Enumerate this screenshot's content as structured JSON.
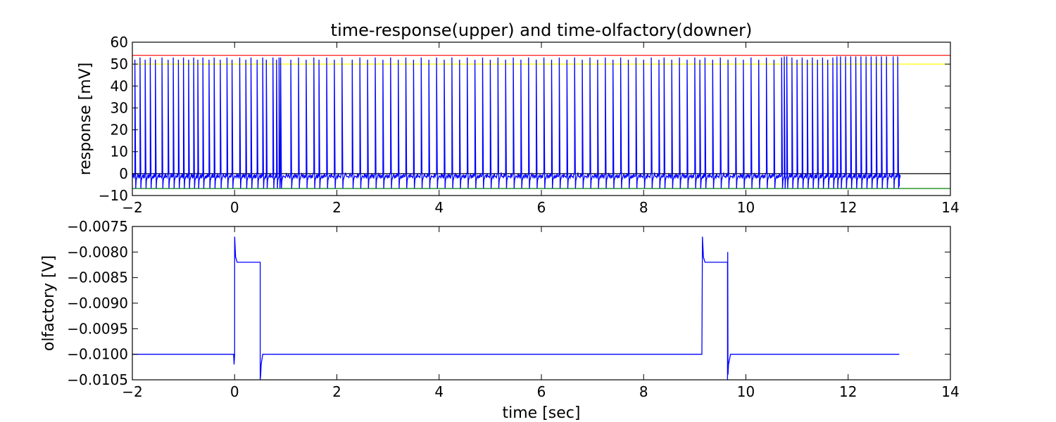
{
  "figure": {
    "title": "time-response(upper) and time-olfactory(downer)",
    "colors": {
      "trace": "#0000ff",
      "frame": "#000000"
    }
  },
  "chart_data": [
    {
      "type": "line",
      "ylabel": "response [mV]",
      "xlabel": "",
      "xlim": [
        -2,
        14
      ],
      "ylim": [
        -10,
        60
      ],
      "xticks": [
        -2,
        0,
        2,
        4,
        6,
        8,
        10,
        12,
        14
      ],
      "yticks": [
        -10,
        0,
        10,
        20,
        30,
        40,
        50,
        60
      ],
      "xtick_labels": [
        "−2",
        "0",
        "2",
        "4",
        "6",
        "8",
        "10",
        "12",
        "14"
      ],
      "ytick_labels": [
        "−10",
        "0",
        "10",
        "20",
        "30",
        "40",
        "50",
        "60"
      ],
      "reference_lines": [
        {
          "y": 54,
          "color": "#ff0000"
        },
        {
          "y": 50,
          "color": "#ffff00"
        },
        {
          "y": 0,
          "color": "#000000"
        },
        {
          "y": -6.8,
          "color": "#008000"
        }
      ],
      "series": [
        {
          "color": "#0000ff",
          "baseline_mV": -1,
          "trough_mV": -6.8,
          "x_range": [
            -2,
            13
          ],
          "spike_times": [
            -1.95,
            -1.85,
            -1.75,
            -1.65,
            -1.55,
            -1.42,
            -1.3,
            -1.2,
            -1.1,
            -1.0,
            -0.9,
            -0.8,
            -0.72,
            -0.62,
            -0.5,
            -0.4,
            -0.28,
            -0.15,
            -0.05,
            0.1,
            0.22,
            0.32,
            0.44,
            0.55,
            0.62,
            0.75,
            0.82,
            0.87,
            0.9,
            1.1,
            1.25,
            1.4,
            1.55,
            1.65,
            1.8,
            1.95,
            2.1,
            2.3,
            2.45,
            2.6,
            2.75,
            2.9,
            3.05,
            3.2,
            3.35,
            3.5,
            3.65,
            3.8,
            3.95,
            4.1,
            4.25,
            4.4,
            4.55,
            4.7,
            4.85,
            5.0,
            5.15,
            5.3,
            5.45,
            5.6,
            5.75,
            5.9,
            6.05,
            6.2,
            6.35,
            6.5,
            6.65,
            6.8,
            6.95,
            7.1,
            7.25,
            7.4,
            7.55,
            7.7,
            7.85,
            8.0,
            8.15,
            8.3,
            8.4,
            8.55,
            8.7,
            8.85,
            9.0,
            9.1,
            9.2,
            9.35,
            9.5,
            9.65,
            9.8,
            9.95,
            10.1,
            10.25,
            10.4,
            10.55,
            10.7,
            10.75,
            10.8,
            10.9,
            11.0,
            11.1,
            11.2,
            11.3,
            11.4,
            11.5,
            11.6,
            11.7,
            11.78,
            11.85,
            11.95,
            12.05,
            12.15,
            12.25,
            12.35,
            12.45,
            12.55,
            12.65,
            12.75,
            12.88,
            12.97
          ],
          "spike_peaks_mV": [
            52,
            53,
            52,
            53,
            52,
            53,
            52,
            53,
            52,
            53,
            52,
            53,
            52,
            53,
            52,
            53,
            52,
            53,
            52,
            53,
            52,
            53,
            52,
            53,
            52,
            53,
            52,
            53,
            53,
            52,
            53,
            52,
            53,
            52,
            53,
            52,
            53,
            52,
            53,
            52,
            53,
            52,
            53,
            52,
            53,
            52,
            53,
            52,
            53,
            52,
            53,
            52,
            53,
            52,
            53,
            52,
            53,
            52,
            53,
            52,
            53,
            52,
            53,
            52,
            53,
            52,
            53,
            52,
            53,
            52,
            53,
            52,
            53,
            52,
            53,
            52,
            53,
            52,
            53,
            52,
            53,
            52,
            53,
            52,
            53,
            52,
            53,
            52,
            53,
            52,
            53,
            52,
            53,
            52,
            53,
            53.5,
            53.5,
            53,
            52,
            53,
            52,
            53,
            52,
            53,
            52,
            53,
            53.5,
            53.5,
            53.5,
            53.5,
            53.5,
            53.5,
            53.5,
            53.5,
            53.5,
            53.5,
            53.5,
            53.5,
            53.5
          ]
        }
      ]
    },
    {
      "type": "line",
      "ylabel": "olfactory [V]",
      "xlabel": "time [sec]",
      "xlim": [
        -2,
        14
      ],
      "ylim": [
        -0.0105,
        -0.0075
      ],
      "xticks": [
        -2,
        0,
        2,
        4,
        6,
        8,
        10,
        12,
        14
      ],
      "yticks": [
        -0.0105,
        -0.01,
        -0.0095,
        -0.009,
        -0.0085,
        -0.008,
        -0.0075
      ],
      "xtick_labels": [
        "−2",
        "0",
        "2",
        "4",
        "6",
        "8",
        "10",
        "12",
        "14"
      ],
      "ytick_labels": [
        "−0.0105",
        "−0.0100",
        "−0.0095",
        "−0.0090",
        "−0.0085",
        "−0.0080",
        "−0.0075"
      ],
      "series": [
        {
          "color": "#0000ff",
          "x": [
            -2,
            -0.02,
            -0.01,
            0.0,
            0.0,
            0.01,
            0.02,
            0.05,
            0.1,
            0.5,
            0.5,
            0.51,
            0.52,
            0.55,
            0.6,
            0.7,
            9.14,
            9.15,
            9.16,
            9.17,
            9.2,
            9.25,
            9.3,
            9.64,
            9.64,
            9.645,
            9.65,
            9.66,
            9.7,
            9.8,
            13.0
          ],
          "y": [
            -0.01,
            -0.01,
            -0.0102,
            -0.01,
            -0.0077,
            -0.0079,
            -0.0081,
            -0.0082,
            -0.0082,
            -0.0082,
            -0.0105,
            -0.0104,
            -0.0102,
            -0.01,
            -0.01,
            -0.01,
            -0.01,
            -0.0077,
            -0.0079,
            -0.0081,
            -0.0082,
            -0.0082,
            -0.0082,
            -0.0082,
            -0.0105,
            -0.008,
            -0.0104,
            -0.0102,
            -0.01,
            -0.01,
            -0.01
          ]
        }
      ]
    }
  ]
}
